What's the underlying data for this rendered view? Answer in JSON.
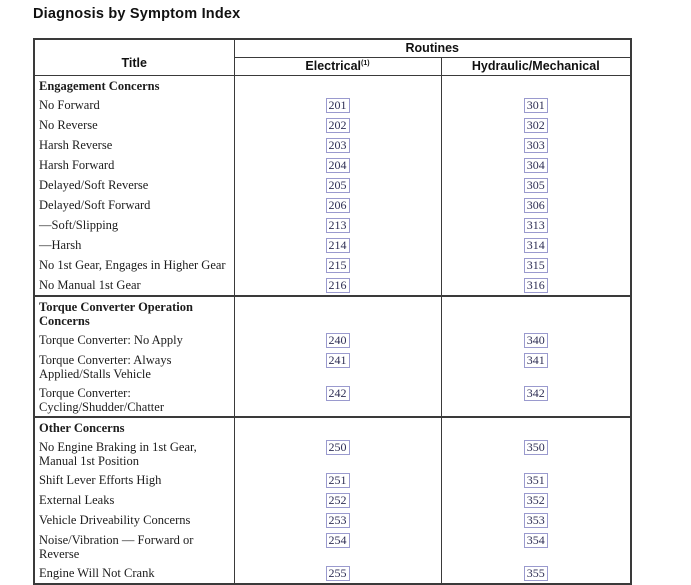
{
  "page": {
    "title": "Diagnosis by Symptom Index"
  },
  "table": {
    "header": {
      "title": "Title",
      "routines": "Routines",
      "electrical": "Electrical",
      "electrical_footnote": "(1)",
      "hydraulic": "Hydraulic/Mechanical"
    },
    "sections": [
      {
        "group": "Engagement Concerns",
        "rows": [
          {
            "title": "No Forward",
            "electrical": "201",
            "hydraulic": "301"
          },
          {
            "title": "No Reverse",
            "electrical": "202",
            "hydraulic": "302"
          },
          {
            "title": "Harsh Reverse",
            "electrical": "203",
            "hydraulic": "303"
          },
          {
            "title": "Harsh Forward",
            "electrical": "204",
            "hydraulic": "304"
          },
          {
            "title": "Delayed/Soft Reverse",
            "electrical": "205",
            "hydraulic": "305"
          },
          {
            "title": "Delayed/Soft Forward",
            "electrical": "206",
            "hydraulic": "306"
          },
          {
            "title": "—Soft/Slipping",
            "electrical": "213",
            "hydraulic": "313"
          },
          {
            "title": "—Harsh",
            "electrical": "214",
            "hydraulic": "314"
          },
          {
            "title": "No 1st Gear, Engages in Higher Gear",
            "electrical": "215",
            "hydraulic": "315"
          },
          {
            "title": "No Manual 1st Gear",
            "electrical": "216",
            "hydraulic": "316"
          }
        ]
      },
      {
        "group": "Torque Converter Operation Concerns",
        "rows": [
          {
            "title": "Torque Converter: No Apply",
            "electrical": "240",
            "hydraulic": "340"
          },
          {
            "title": "Torque Converter: Always Applied/Stalls Vehicle",
            "electrical": "241",
            "hydraulic": "341"
          },
          {
            "title": "Torque Converter: Cycling/Shudder/Chatter",
            "electrical": "242",
            "hydraulic": "342"
          }
        ]
      },
      {
        "group": "Other Concerns",
        "rows": [
          {
            "title": "No Engine Braking in 1st Gear, Manual 1st Position",
            "electrical": "250",
            "hydraulic": "350"
          },
          {
            "title": "Shift Lever Efforts High",
            "electrical": "251",
            "hydraulic": "351"
          },
          {
            "title": "External Leaks",
            "electrical": "252",
            "hydraulic": "352"
          },
          {
            "title": "Vehicle Driveability Concerns",
            "electrical": "253",
            "hydraulic": "353"
          },
          {
            "title": "Noise/Vibration — Forward or Reverse",
            "electrical": "254",
            "hydraulic": "354"
          },
          {
            "title": "Engine Will Not Crank",
            "electrical": "255",
            "hydraulic": "355"
          }
        ]
      }
    ]
  },
  "colors": {
    "table_border": "#3a3a3a",
    "routine_link_text": "#2e2e54",
    "routine_link_border": "#9a9ace"
  }
}
